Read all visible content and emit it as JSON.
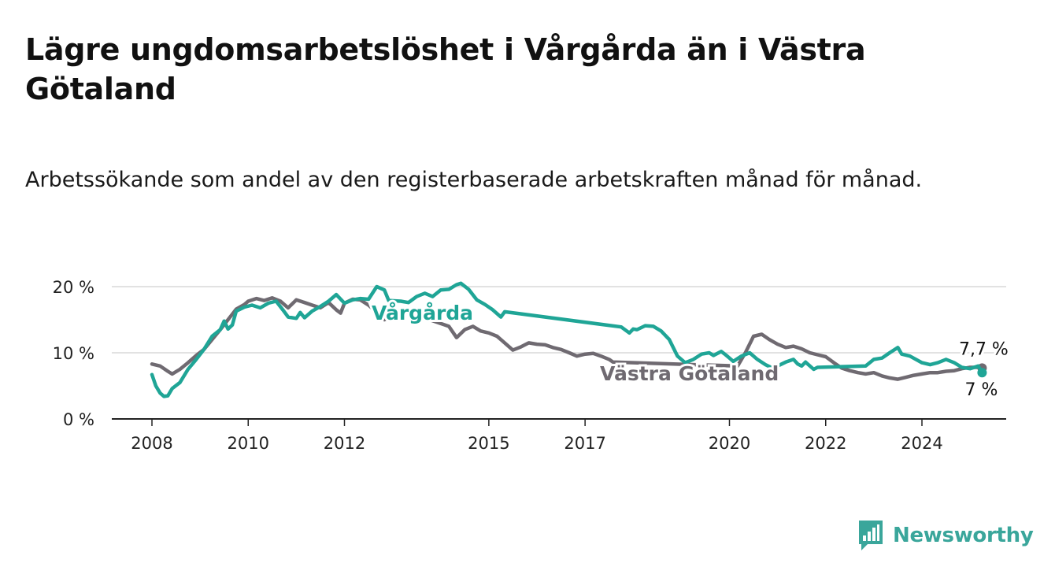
{
  "title": "Lägre ungdomsarbetslöshet i Vårgårda än i Västra Götaland",
  "subtitle": "Arbetssökande som andel av den registerbaserade arbetskraften månad för månad.",
  "brand": {
    "name": "Newsworthy",
    "icon": "newsworthy-chart-icon",
    "color": "#3aa69b"
  },
  "chart_data": {
    "type": "line",
    "title": "",
    "xlabel": "",
    "ylabel": "",
    "ylim": [
      0,
      20
    ],
    "xlim": [
      2007.5,
      2025.9
    ],
    "grid": true,
    "y_ticks": [
      {
        "value": 0,
        "label": "0 %"
      },
      {
        "value": 10,
        "label": "10 %"
      },
      {
        "value": 20,
        "label": "20 %"
      }
    ],
    "x_ticks": [
      {
        "value": 2008,
        "label": "2008"
      },
      {
        "value": 2010,
        "label": "2010"
      },
      {
        "value": 2012,
        "label": "2012"
      },
      {
        "value": 2015,
        "label": "2015"
      },
      {
        "value": 2017,
        "label": "2017"
      },
      {
        "value": 2020,
        "label": "2020"
      },
      {
        "value": 2022,
        "label": "2022"
      },
      {
        "value": 2024,
        "label": "2024"
      }
    ],
    "series": [
      {
        "name": "Västra Götaland",
        "color": "#6f6a71",
        "end_label": "7,7 %",
        "points": [
          [
            2008.0,
            8.3
          ],
          [
            2008.17,
            8.0
          ],
          [
            2008.33,
            7.2
          ],
          [
            2008.42,
            6.8
          ],
          [
            2008.58,
            7.5
          ],
          [
            2008.75,
            8.5
          ],
          [
            2008.92,
            9.6
          ],
          [
            2009.08,
            10.5
          ],
          [
            2009.25,
            12.0
          ],
          [
            2009.42,
            13.5
          ],
          [
            2009.58,
            15.0
          ],
          [
            2009.75,
            16.6
          ],
          [
            2009.92,
            17.3
          ],
          [
            2010.0,
            17.8
          ],
          [
            2010.17,
            18.2
          ],
          [
            2010.33,
            17.9
          ],
          [
            2010.5,
            18.3
          ],
          [
            2010.67,
            17.8
          ],
          [
            2010.83,
            16.8
          ],
          [
            2011.0,
            18.0
          ],
          [
            2011.17,
            17.6
          ],
          [
            2011.33,
            17.2
          ],
          [
            2011.5,
            16.8
          ],
          [
            2011.67,
            17.6
          ],
          [
            2011.83,
            16.5
          ],
          [
            2011.92,
            16.0
          ],
          [
            2012.0,
            17.5
          ],
          [
            2012.17,
            18.1
          ],
          [
            2012.33,
            18.0
          ],
          [
            2012.5,
            17.2
          ],
          [
            2012.67,
            16.1
          ],
          [
            2012.83,
            15.0
          ],
          [
            2013.0,
            15.7
          ],
          [
            2013.17,
            16.5
          ],
          [
            2014.17,
            14.0
          ],
          [
            2014.33,
            12.3
          ],
          [
            2014.5,
            13.5
          ],
          [
            2014.67,
            14.0
          ],
          [
            2014.83,
            13.3
          ],
          [
            2015.0,
            13.0
          ],
          [
            2015.17,
            12.5
          ],
          [
            2015.33,
            11.5
          ],
          [
            2015.5,
            10.4
          ],
          [
            2015.67,
            10.9
          ],
          [
            2015.83,
            11.5
          ],
          [
            2016.0,
            11.3
          ],
          [
            2016.17,
            11.2
          ],
          [
            2016.33,
            10.8
          ],
          [
            2016.5,
            10.5
          ],
          [
            2016.67,
            10.0
          ],
          [
            2016.83,
            9.5
          ],
          [
            2017.0,
            9.8
          ],
          [
            2017.17,
            9.9
          ],
          [
            2017.33,
            9.5
          ],
          [
            2017.5,
            9.0
          ],
          [
            2017.58,
            8.6
          ],
          [
            2020.17,
            8.0
          ],
          [
            2020.33,
            10.0
          ],
          [
            2020.5,
            12.5
          ],
          [
            2020.67,
            12.8
          ],
          [
            2020.83,
            12.0
          ],
          [
            2021.0,
            11.3
          ],
          [
            2021.17,
            10.8
          ],
          [
            2021.33,
            11.0
          ],
          [
            2021.5,
            10.6
          ],
          [
            2021.67,
            10.0
          ],
          [
            2021.83,
            9.7
          ],
          [
            2022.0,
            9.4
          ],
          [
            2022.17,
            8.5
          ],
          [
            2022.33,
            7.7
          ],
          [
            2022.5,
            7.3
          ],
          [
            2022.67,
            7.0
          ],
          [
            2022.83,
            6.8
          ],
          [
            2023.0,
            7.0
          ],
          [
            2023.17,
            6.5
          ],
          [
            2023.33,
            6.2
          ],
          [
            2023.5,
            6.0
          ],
          [
            2023.67,
            6.3
          ],
          [
            2023.83,
            6.6
          ],
          [
            2024.0,
            6.8
          ],
          [
            2024.17,
            7.0
          ],
          [
            2024.33,
            7.0
          ],
          [
            2024.5,
            7.2
          ],
          [
            2024.67,
            7.3
          ],
          [
            2024.83,
            7.6
          ],
          [
            2025.0,
            7.8
          ],
          [
            2025.17,
            7.8
          ],
          [
            2025.25,
            7.7
          ]
        ]
      },
      {
        "name": "Vårgårda",
        "color": "#1fa596",
        "end_label": "7 %",
        "points": [
          [
            2008.0,
            6.7
          ],
          [
            2008.08,
            5.0
          ],
          [
            2008.17,
            3.9
          ],
          [
            2008.25,
            3.4
          ],
          [
            2008.33,
            3.5
          ],
          [
            2008.42,
            4.6
          ],
          [
            2008.58,
            5.5
          ],
          [
            2008.75,
            7.5
          ],
          [
            2008.92,
            9.0
          ],
          [
            2009.08,
            10.5
          ],
          [
            2009.25,
            12.5
          ],
          [
            2009.42,
            13.5
          ],
          [
            2009.5,
            14.8
          ],
          [
            2009.58,
            13.6
          ],
          [
            2009.67,
            14.2
          ],
          [
            2009.75,
            16.3
          ],
          [
            2009.92,
            16.9
          ],
          [
            2010.08,
            17.2
          ],
          [
            2010.25,
            16.8
          ],
          [
            2010.42,
            17.5
          ],
          [
            2010.58,
            17.8
          ],
          [
            2010.75,
            16.2
          ],
          [
            2010.83,
            15.4
          ],
          [
            2011.0,
            15.2
          ],
          [
            2011.08,
            16.1
          ],
          [
            2011.17,
            15.3
          ],
          [
            2011.33,
            16.3
          ],
          [
            2011.5,
            17.0
          ],
          [
            2011.67,
            17.8
          ],
          [
            2011.83,
            18.8
          ],
          [
            2012.0,
            17.5
          ],
          [
            2012.17,
            18.0
          ],
          [
            2012.33,
            18.2
          ],
          [
            2012.5,
            18.1
          ],
          [
            2012.67,
            20.0
          ],
          [
            2012.83,
            19.5
          ],
          [
            2012.92,
            17.9
          ],
          [
            2013.17,
            17.8
          ],
          [
            2013.33,
            17.6
          ],
          [
            2013.5,
            18.5
          ],
          [
            2013.67,
            19.0
          ],
          [
            2013.83,
            18.5
          ],
          [
            2014.0,
            19.5
          ],
          [
            2014.17,
            19.6
          ],
          [
            2014.33,
            20.3
          ],
          [
            2014.42,
            20.5
          ],
          [
            2014.58,
            19.6
          ],
          [
            2014.75,
            18.0
          ],
          [
            2014.92,
            17.3
          ],
          [
            2015.08,
            16.5
          ],
          [
            2015.25,
            15.4
          ],
          [
            2015.33,
            16.2
          ],
          [
            2017.75,
            13.9
          ],
          [
            2017.92,
            13.0
          ],
          [
            2018.0,
            13.6
          ],
          [
            2018.08,
            13.5
          ],
          [
            2018.25,
            14.1
          ],
          [
            2018.42,
            14.0
          ],
          [
            2018.58,
            13.3
          ],
          [
            2018.75,
            12.0
          ],
          [
            2018.92,
            9.5
          ],
          [
            2019.0,
            9.0
          ],
          [
            2019.08,
            8.5
          ],
          [
            2019.25,
            9.0
          ],
          [
            2019.42,
            9.8
          ],
          [
            2019.58,
            10.0
          ],
          [
            2019.67,
            9.6
          ],
          [
            2019.83,
            10.2
          ],
          [
            2019.92,
            9.7
          ],
          [
            2020.0,
            9.2
          ],
          [
            2020.08,
            8.7
          ],
          [
            2020.25,
            9.5
          ],
          [
            2020.42,
            10.0
          ],
          [
            2020.58,
            9.0
          ],
          [
            2020.75,
            8.2
          ],
          [
            2020.92,
            7.6
          ],
          [
            2021.0,
            8.0
          ],
          [
            2021.17,
            8.6
          ],
          [
            2021.33,
            9.0
          ],
          [
            2021.42,
            8.3
          ],
          [
            2021.5,
            8.0
          ],
          [
            2021.58,
            8.6
          ],
          [
            2021.75,
            7.5
          ],
          [
            2021.83,
            7.8
          ],
          [
            2022.83,
            8.0
          ],
          [
            2023.0,
            9.0
          ],
          [
            2023.17,
            9.2
          ],
          [
            2023.33,
            10.0
          ],
          [
            2023.5,
            10.8
          ],
          [
            2023.58,
            9.8
          ],
          [
            2023.75,
            9.5
          ],
          [
            2024.0,
            8.5
          ],
          [
            2024.17,
            8.2
          ],
          [
            2024.33,
            8.5
          ],
          [
            2024.5,
            9.0
          ],
          [
            2024.67,
            8.5
          ],
          [
            2024.83,
            7.8
          ],
          [
            2025.0,
            7.6
          ],
          [
            2025.17,
            8.0
          ],
          [
            2025.25,
            7.0
          ]
        ]
      }
    ],
    "annotations": [
      {
        "text": "Vårgårda",
        "series": "Vårgårda"
      },
      {
        "text": "Västra Götaland",
        "series": "Västra Götaland"
      }
    ]
  }
}
